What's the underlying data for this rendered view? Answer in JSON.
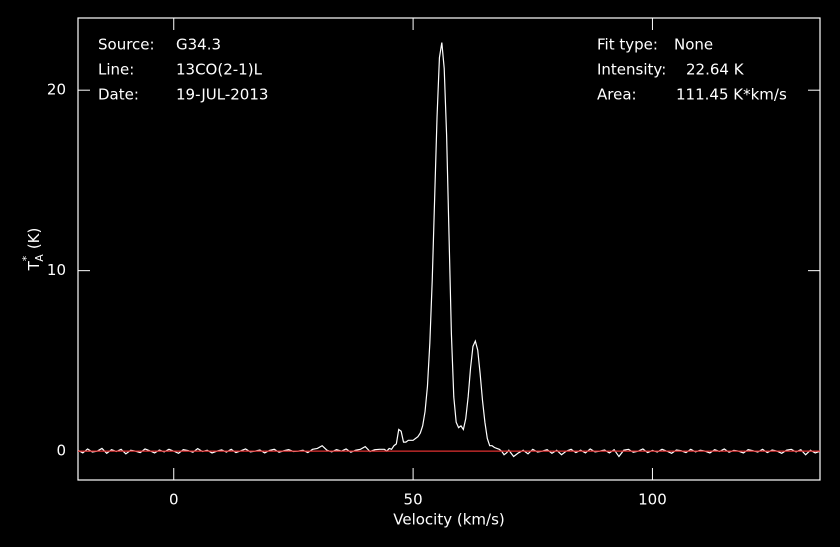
{
  "chart_data": {
    "type": "line",
    "annotations": [
      {
        "label": "Source:",
        "value": "G34.3"
      },
      {
        "label": "Line:",
        "value": "13CO(2-1)L"
      },
      {
        "label": "Date:",
        "value": "19-JUL-2013"
      },
      {
        "label": "Fit type:",
        "value": "None"
      },
      {
        "label": "Intensity:",
        "value": "22.64 K"
      },
      {
        "label": "Area:",
        "value": "111.45 K*km/s"
      }
    ],
    "x_label": "Velocity (km/s)",
    "y_label": {
      "symbol": "T",
      "sub": "A",
      "sup": "*",
      "unit": "(K)"
    },
    "xlim": [
      -20,
      135
    ],
    "ylim": [
      -1.6,
      24
    ],
    "xticks": [
      0,
      50,
      100
    ],
    "yticks": [
      0,
      10,
      20
    ],
    "baseline": {
      "value": 0,
      "color": "#e03030"
    },
    "series": [
      {
        "color": "#ffffff",
        "x": [
          -20,
          -19,
          -18,
          -17,
          -16,
          -15,
          -14,
          -13,
          -12,
          -11,
          -10,
          -9,
          -8,
          -7,
          -6,
          -5,
          -4,
          -3,
          -2,
          -1,
          0,
          1,
          2,
          3,
          4,
          5,
          6,
          7,
          8,
          9,
          10,
          11,
          12,
          13,
          14,
          15,
          16,
          17,
          18,
          19,
          20,
          21,
          22,
          23,
          24,
          25,
          26,
          27,
          28,
          29,
          30,
          31,
          32,
          33,
          34,
          35,
          36,
          37,
          38,
          39,
          40,
          41,
          42,
          43,
          44,
          44.5,
          45,
          45.5,
          46,
          46.5,
          47,
          47.5,
          48,
          48.5,
          49,
          49.5,
          50,
          50.5,
          51,
          51.5,
          52,
          52.5,
          53,
          53.5,
          54,
          54.5,
          55,
          55.5,
          56,
          56.5,
          57,
          57.5,
          58,
          58.5,
          59,
          59.5,
          60,
          60.5,
          61,
          61.5,
          62,
          62.5,
          63,
          63.5,
          64,
          64.5,
          65,
          65.5,
          66,
          66.5,
          67,
          67.5,
          68,
          68.5,
          69,
          69.5,
          70,
          71,
          72,
          73,
          74,
          75,
          76,
          77,
          78,
          79,
          80,
          81,
          82,
          83,
          84,
          85,
          86,
          87,
          88,
          89,
          90,
          91,
          92,
          93,
          94,
          95,
          96,
          97,
          98,
          99,
          100,
          101,
          102,
          103,
          104,
          105,
          106,
          107,
          108,
          109,
          110,
          111,
          112,
          113,
          114,
          115,
          116,
          117,
          118,
          119,
          120,
          121,
          122,
          123,
          124,
          125,
          126,
          127,
          128,
          129,
          130,
          131,
          132,
          133,
          134,
          135
        ],
        "values": [
          0.05,
          -0.1,
          0.12,
          -0.05,
          0.0,
          0.15,
          -0.12,
          0.08,
          -0.02,
          0.1,
          -0.15,
          0.05,
          0.0,
          -0.08,
          0.12,
          0.02,
          -0.1,
          0.06,
          -0.04,
          0.1,
          0.0,
          -0.12,
          0.08,
          0.03,
          -0.06,
          0.14,
          -0.02,
          0.05,
          -0.1,
          0.0,
          0.07,
          -0.05,
          0.1,
          -0.08,
          0.02,
          0.12,
          -0.04,
          0.0,
          0.06,
          -0.1,
          0.04,
          0.1,
          -0.06,
          0.02,
          0.08,
          -0.02,
          0.0,
          0.05,
          -0.08,
          0.1,
          0.15,
          0.3,
          0.05,
          -0.04,
          0.08,
          0.0,
          0.12,
          -0.06,
          0.05,
          0.1,
          0.25,
          -0.02,
          0.08,
          0.1,
          0.1,
          0.0,
          0.15,
          0.1,
          0.3,
          0.4,
          1.2,
          1.1,
          0.5,
          0.5,
          0.6,
          0.6,
          0.6,
          0.7,
          0.8,
          1.0,
          1.4,
          2.2,
          3.6,
          6.0,
          9.5,
          14.0,
          18.5,
          21.8,
          22.64,
          21.2,
          17.5,
          12.0,
          6.5,
          3.0,
          1.6,
          1.3,
          1.4,
          1.2,
          1.8,
          3.0,
          4.6,
          5.8,
          6.1,
          5.6,
          4.3,
          2.8,
          1.6,
          0.7,
          0.3,
          0.3,
          0.2,
          0.15,
          0.1,
          0.0,
          -0.2,
          -0.1,
          0.05,
          -0.3,
          -0.1,
          0.05,
          -0.15,
          0.1,
          -0.05,
          0.0,
          0.08,
          -0.12,
          0.05,
          -0.2,
          0.0,
          0.1,
          -0.08,
          0.05,
          -0.1,
          0.12,
          -0.04,
          0.0,
          0.06,
          -0.1,
          0.08,
          -0.3,
          0.05,
          0.1,
          -0.06,
          0.0,
          0.12,
          -0.08,
          0.04,
          -0.05,
          0.1,
          0.0,
          -0.12,
          0.06,
          0.02,
          -0.08,
          0.1,
          -0.04,
          0.05,
          0.0,
          -0.1,
          0.08,
          -0.02,
          0.12,
          -0.06,
          0.04,
          0.0,
          -0.1,
          0.08,
          0.02,
          -0.05,
          0.1,
          -0.08,
          0.06,
          0.0,
          -0.12,
          0.05,
          0.1,
          -0.04,
          0.08,
          -0.2,
          0.05,
          -0.1,
          0.0
        ]
      }
    ]
  }
}
